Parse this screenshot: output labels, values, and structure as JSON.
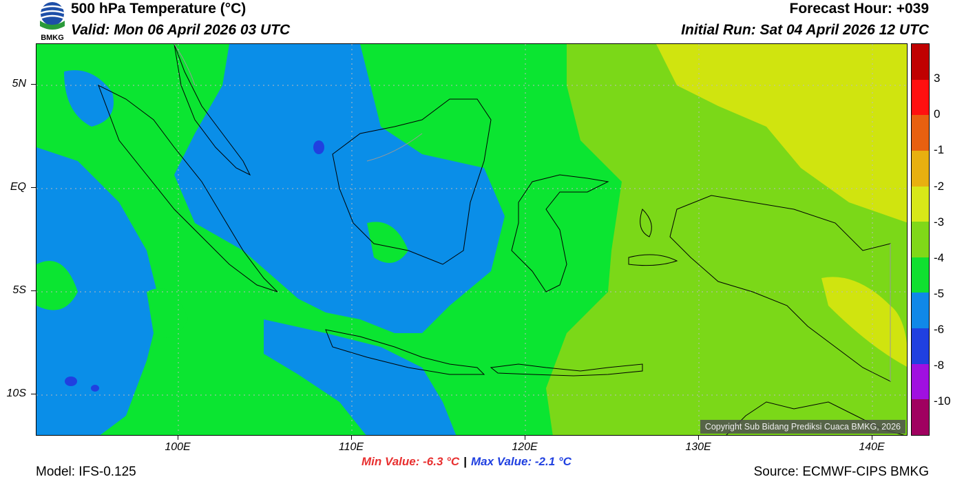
{
  "header": {
    "title": "500 hPa Temperature (°C)",
    "valid": "Valid: Mon 06 April 2026 03 UTC",
    "forecast_hour": "Forecast Hour: +039",
    "initial_run": "Initial Run: Sat 04 April 2026 12 UTC"
  },
  "logo": {
    "text": "BMKG"
  },
  "map": {
    "lat_ticks": [
      "5N",
      "EQ",
      "5S",
      "10S"
    ],
    "lon_ticks": [
      "100E",
      "110E",
      "120E",
      "130E",
      "140E"
    ],
    "copyright": "Copyright Sub Bidang Prediksi Cuaca BMKG, 2026",
    "colors": {
      "c_m5": "#0a8ee8",
      "c_m4": "#0be531",
      "c_m3": "#7bd818",
      "c_m2": "#d0e40f"
    }
  },
  "colorbar": {
    "labels": [
      "3",
      "0",
      "-1",
      "-2",
      "-3",
      "-4",
      "-5",
      "-6",
      "-8",
      "-10"
    ],
    "colors": [
      "#c00000",
      "#ff1010",
      "#e86010",
      "#e8b010",
      "#d8e818",
      "#80d818",
      "#10e030",
      "#1088e8",
      "#2040e0",
      "#a010e0",
      "#a00060"
    ]
  },
  "stats": {
    "min_value": "Min Value: -6.3 °C",
    "separator": "|",
    "max_value": "Max Value: -2.1 °C"
  },
  "footer": {
    "model": "Model: IFS-0.125",
    "source": "Source: ECMWF-CIPS BMKG"
  }
}
